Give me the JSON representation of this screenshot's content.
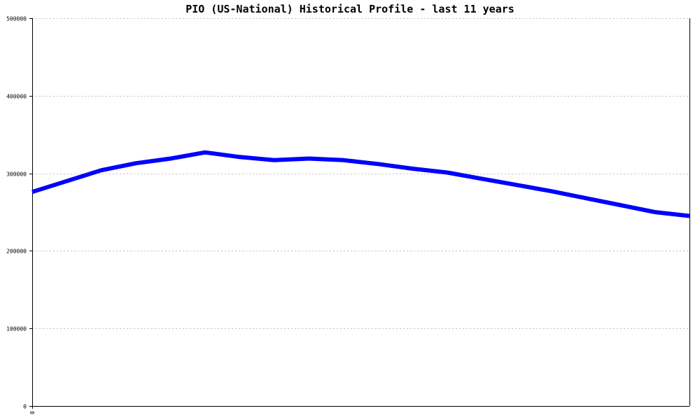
{
  "chart_data": {
    "type": "line",
    "title": "PIO (US-National) Historical Profile - last 11 years",
    "xlabel": "",
    "ylabel": "",
    "x_tick_labels": [
      "0"
    ],
    "y_tick_labels": [
      "0",
      "100000",
      "200000",
      "300000",
      "400000",
      "500000"
    ],
    "ylim": [
      0,
      500000
    ],
    "grid": true,
    "series": [
      {
        "color": "#0000ff",
        "values": [
          276000,
          290000,
          304000,
          313000,
          319000,
          327000,
          321000,
          317000,
          319000,
          317000,
          312000,
          306000,
          301000,
          293000,
          285000,
          277000,
          268000,
          259000,
          250000,
          245000
        ]
      }
    ]
  },
  "colors": {
    "line": "#0000ff",
    "grid": "#c0c0c0",
    "axis": "#000000",
    "background": "#ffffff"
  }
}
